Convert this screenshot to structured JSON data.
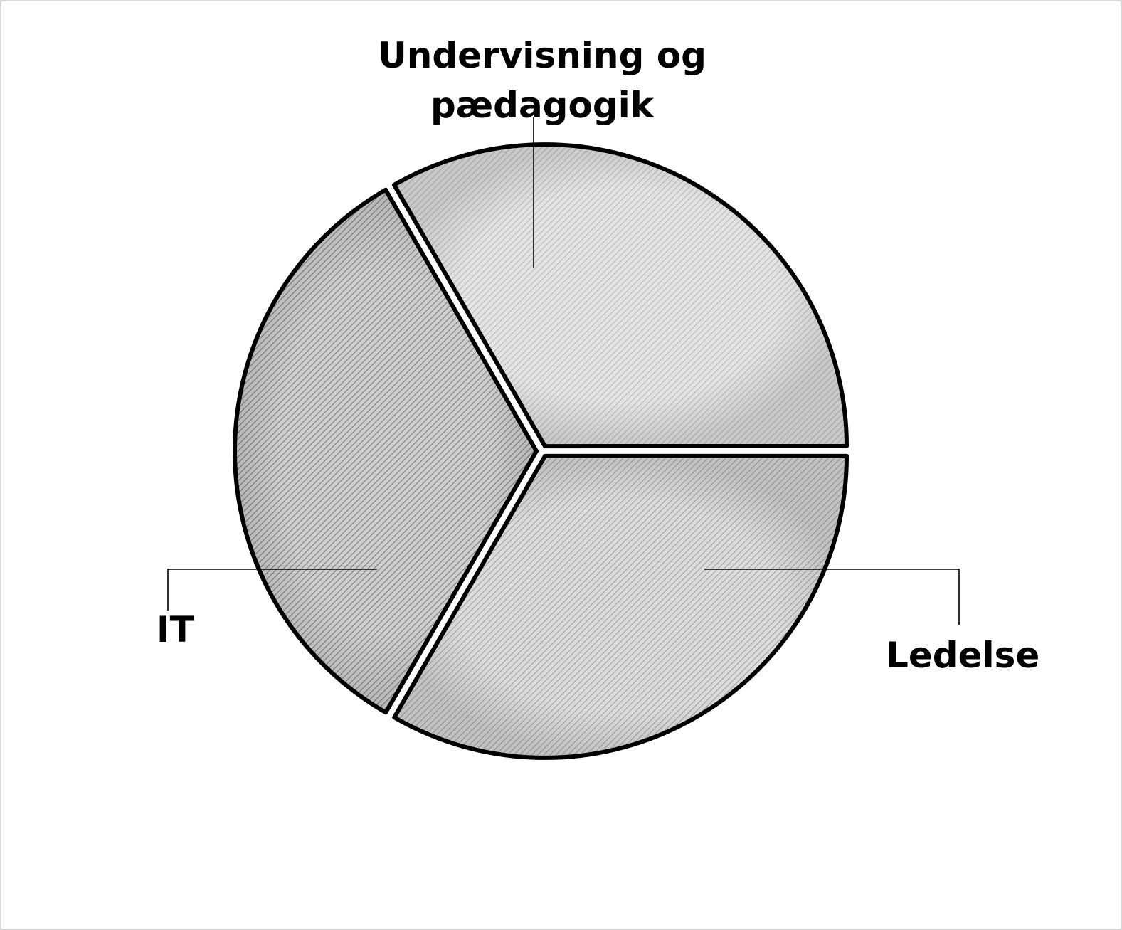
{
  "chart_data": {
    "type": "pie",
    "title": "",
    "slices": [
      {
        "label_lines": [
          "Undervisning og",
          "pædagogik"
        ],
        "value": 33.33,
        "exploded": true,
        "pattern": "light"
      },
      {
        "label_lines": [
          "Ledelse"
        ],
        "value": 33.33,
        "exploded": true,
        "pattern": "medium"
      },
      {
        "label_lines": [
          "IT"
        ],
        "value": 33.34,
        "exploded": true,
        "pattern": "dark"
      }
    ],
    "legend": "none",
    "label_style": "outside-with-leader-lines",
    "colors": {
      "stroke": "#000000",
      "light": "#d6d6d6",
      "medium": "#c6c6c6",
      "dark": "#a9a9a9",
      "background": "#ffffff"
    }
  }
}
